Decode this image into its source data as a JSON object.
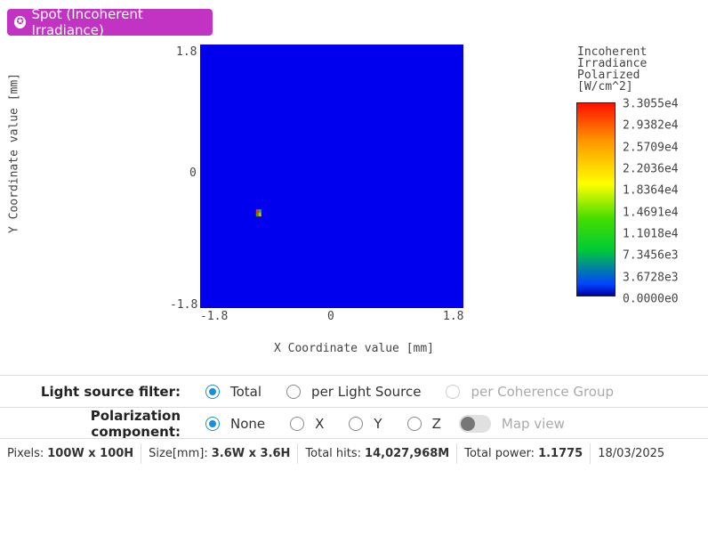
{
  "header": {
    "title": "Spot (Incoherent Irradiance)",
    "icon": "star-icon"
  },
  "plot": {
    "ylabel": "Y Coordinate value [mm]",
    "xlabel": "X Coordinate value [mm]",
    "yticks": [
      "1.8",
      "0",
      "-1.8"
    ],
    "xticks": [
      "-1.8",
      "0",
      "1.8"
    ],
    "background_color": "#0000ee",
    "spot": {
      "x": -1.0,
      "y": -0.5
    }
  },
  "colorbar": {
    "title": [
      "Incoherent",
      "Irradiance",
      "Polarized",
      "[W/cm^2]"
    ],
    "ticks": [
      "3.3055e4",
      "2.9382e4",
      "2.5709e4",
      "2.2036e4",
      "1.8364e4",
      "1.4691e4",
      "1.1018e4",
      "7.3456e3",
      "3.6728e3",
      "0.0000e0"
    ]
  },
  "filter": {
    "label": "Light source filter:",
    "options": [
      "Total",
      "per Light Source",
      "per Coherence Group"
    ],
    "selected": "Total"
  },
  "polarization": {
    "label": "Polarization component:",
    "options": [
      "None",
      "X",
      "Y",
      "Z"
    ],
    "selected": "None",
    "map_view_label": "Map view"
  },
  "status": {
    "pixels_label": "Pixels:",
    "pixels": "100W x 100H",
    "size_label": "Size[mm]:",
    "size": "3.6W x 3.6H",
    "hits_label": "Total hits:",
    "hits": "14,027,968M",
    "power_label": "Total power:",
    "power": "1.1775",
    "date": "18/03/2025"
  }
}
